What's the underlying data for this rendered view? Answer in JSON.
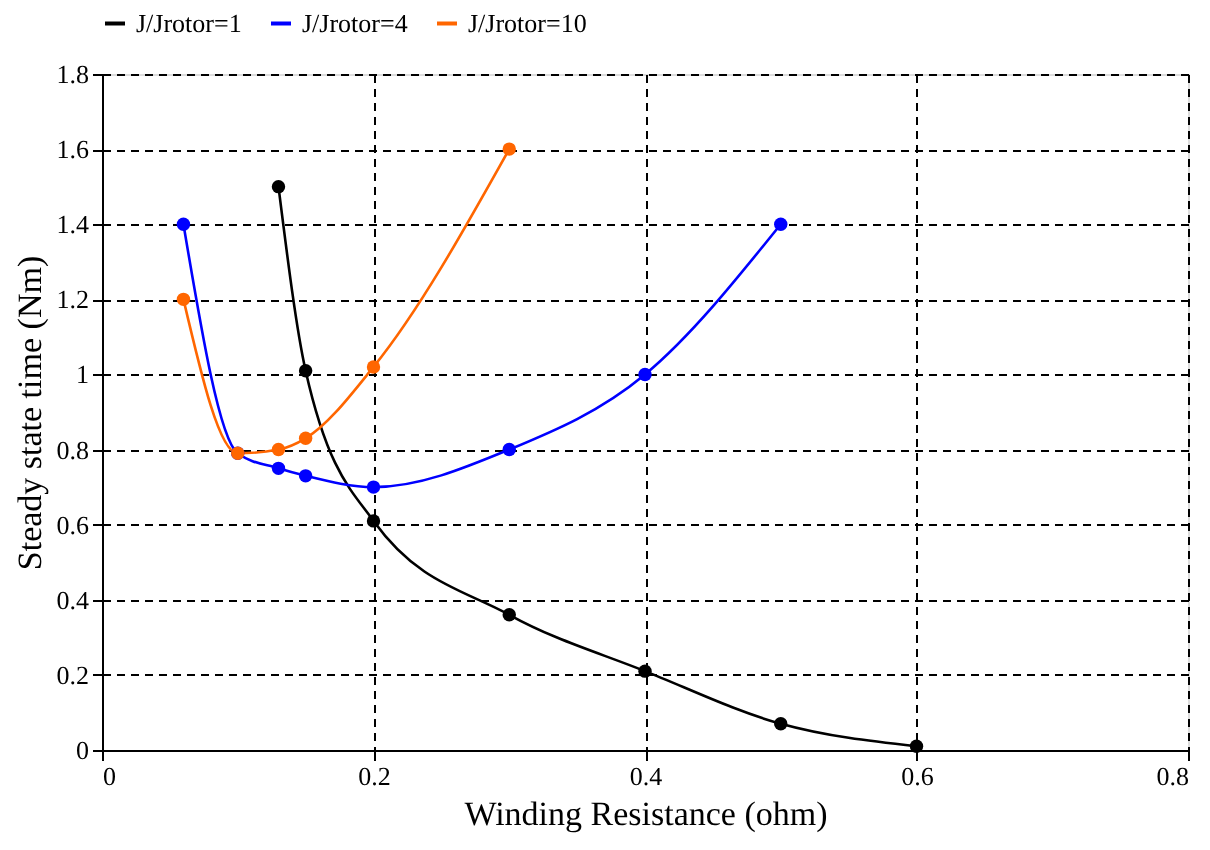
{
  "chart_data": {
    "type": "line",
    "xlabel": "Winding Resistance (ohm)",
    "ylabel": "Steady state time (Nm)",
    "xlim": [
      0,
      0.8
    ],
    "xticks": [
      0,
      0.2,
      0.4,
      0.6,
      0.8
    ],
    "ylim": [
      0,
      1.8
    ],
    "yticks": [
      0,
      0.2,
      0.4,
      0.6,
      0.8,
      1,
      1.2,
      1.4,
      1.6,
      1.8
    ],
    "grid": true,
    "legend": "top",
    "marker": "circle",
    "line_style": "solid",
    "series": [
      {
        "name": "J/Jrotor=1",
        "color": "#000000",
        "x": [
          0.13,
          0.15,
          0.2,
          0.3,
          0.4,
          0.5,
          0.6
        ],
        "values": [
          1.5,
          1.01,
          0.61,
          0.36,
          0.21,
          0.07,
          0.01
        ]
      },
      {
        "name": "J/Jrotor=4",
        "color": "#0000ff",
        "x": [
          0.06,
          0.1,
          0.13,
          0.15,
          0.2,
          0.3,
          0.4,
          0.5
        ],
        "values": [
          1.4,
          0.79,
          0.75,
          0.73,
          0.7,
          0.8,
          1.0,
          1.4
        ]
      },
      {
        "name": "J/Jrotor=10",
        "color": "#ff6600",
        "x": [
          0.06,
          0.1,
          0.13,
          0.15,
          0.2,
          0.3
        ],
        "values": [
          1.2,
          0.79,
          0.8,
          0.83,
          1.02,
          1.6
        ]
      }
    ]
  }
}
